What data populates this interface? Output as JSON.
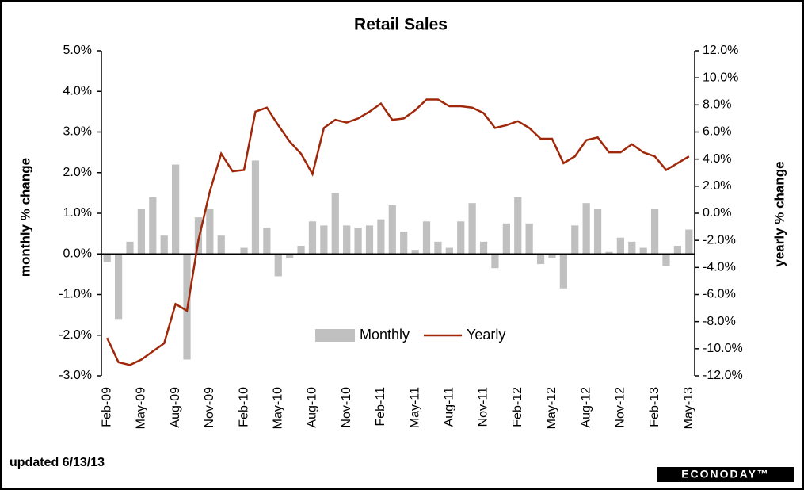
{
  "chart_data": {
    "type": "bar_line",
    "title": "Retail Sales",
    "y_label": "monthly % change",
    "y2_label": "yearly % change",
    "footnote": "updated 6/13/13",
    "logo": "ECONODAY™",
    "categories": [
      "Feb-09",
      null,
      null,
      "May-09",
      null,
      null,
      "Aug-09",
      null,
      null,
      "Nov-09",
      null,
      null,
      "Feb-10",
      null,
      null,
      "May-10",
      null,
      null,
      "Aug-10",
      null,
      null,
      "Nov-10",
      null,
      null,
      "Feb-11",
      null,
      null,
      "May-11",
      null,
      null,
      "Aug-11",
      null,
      null,
      "Nov-11",
      null,
      null,
      "Feb-12",
      null,
      null,
      "May-12",
      null,
      null,
      "Aug-12",
      null,
      null,
      "Nov-12",
      null,
      null,
      "Feb-13",
      null,
      null,
      "May-13"
    ],
    "series": [
      {
        "name": "Monthly",
        "type": "bar",
        "color": "#c0c0c0",
        "values": [
          -0.2,
          -1.6,
          0.3,
          1.1,
          1.4,
          0.45,
          2.2,
          -2.6,
          0.9,
          1.1,
          0.45,
          0,
          0.15,
          2.3,
          0.65,
          -0.55,
          -0.1,
          0.2,
          0.8,
          0.7,
          1.5,
          0.7,
          0.65,
          0.7,
          0.85,
          1.2,
          0.55,
          0.1,
          0.8,
          0.3,
          0.15,
          0.8,
          1.25,
          0.3,
          -0.35,
          0.75,
          1.4,
          0.75,
          -0.25,
          -0.1,
          -0.85,
          0.7,
          1.25,
          1.1,
          0.05,
          0.4,
          0.3,
          0.15,
          1.1,
          -0.3,
          0.2,
          0.6
        ]
      },
      {
        "name": "Yearly",
        "type": "line",
        "axis": "y2",
        "color": "#a0280a",
        "values": [
          -9.2,
          -11.0,
          -11.2,
          -10.8,
          -10.2,
          -9.6,
          -6.7,
          -7.2,
          -2.0,
          1.6,
          4.4,
          3.1,
          3.2,
          7.5,
          7.8,
          6.5,
          5.3,
          4.4,
          2.9,
          6.3,
          6.9,
          6.7,
          7.0,
          7.5,
          8.1,
          6.9,
          7.0,
          7.6,
          8.4,
          8.4,
          7.9,
          7.9,
          7.8,
          7.4,
          6.3,
          6.5,
          6.8,
          6.3,
          5.5,
          5.5,
          3.7,
          4.2,
          5.4,
          5.6,
          4.5,
          4.5,
          5.1,
          4.5,
          4.2,
          3.2,
          3.7,
          4.2
        ]
      }
    ],
    "ylim": [
      -3,
      5
    ],
    "yticks": [
      {
        "value": -3,
        "label": "-3.0%"
      },
      {
        "value": -2,
        "label": "-2.0%"
      },
      {
        "value": -1,
        "label": "-1.0%"
      },
      {
        "value": 0,
        "label": "0.0%"
      },
      {
        "value": 1,
        "label": "1.0%"
      },
      {
        "value": 2,
        "label": "2.0%"
      },
      {
        "value": 3,
        "label": "3.0%"
      },
      {
        "value": 4,
        "label": "4.0%"
      },
      {
        "value": 5,
        "label": "5.0%"
      }
    ],
    "y2lim": [
      -12,
      12
    ],
    "y2ticks": [
      {
        "value": -12,
        "label": "-12.0%"
      },
      {
        "value": -10,
        "label": "-10.0%"
      },
      {
        "value": -8,
        "label": "-8.0%"
      },
      {
        "value": -6,
        "label": "-6.0%"
      },
      {
        "value": -4,
        "label": "-4.0%"
      },
      {
        "value": -2,
        "label": "-2.0%"
      },
      {
        "value": 0,
        "label": "0.0%"
      },
      {
        "value": 2,
        "label": "2.0%"
      },
      {
        "value": 4,
        "label": "4.0%"
      },
      {
        "value": 6,
        "label": "6.0%"
      },
      {
        "value": 8,
        "label": "8.0%"
      },
      {
        "value": 10,
        "label": "10.0%"
      },
      {
        "value": 12,
        "label": "12.0%"
      }
    ],
    "grid": false,
    "legend": "center"
  }
}
